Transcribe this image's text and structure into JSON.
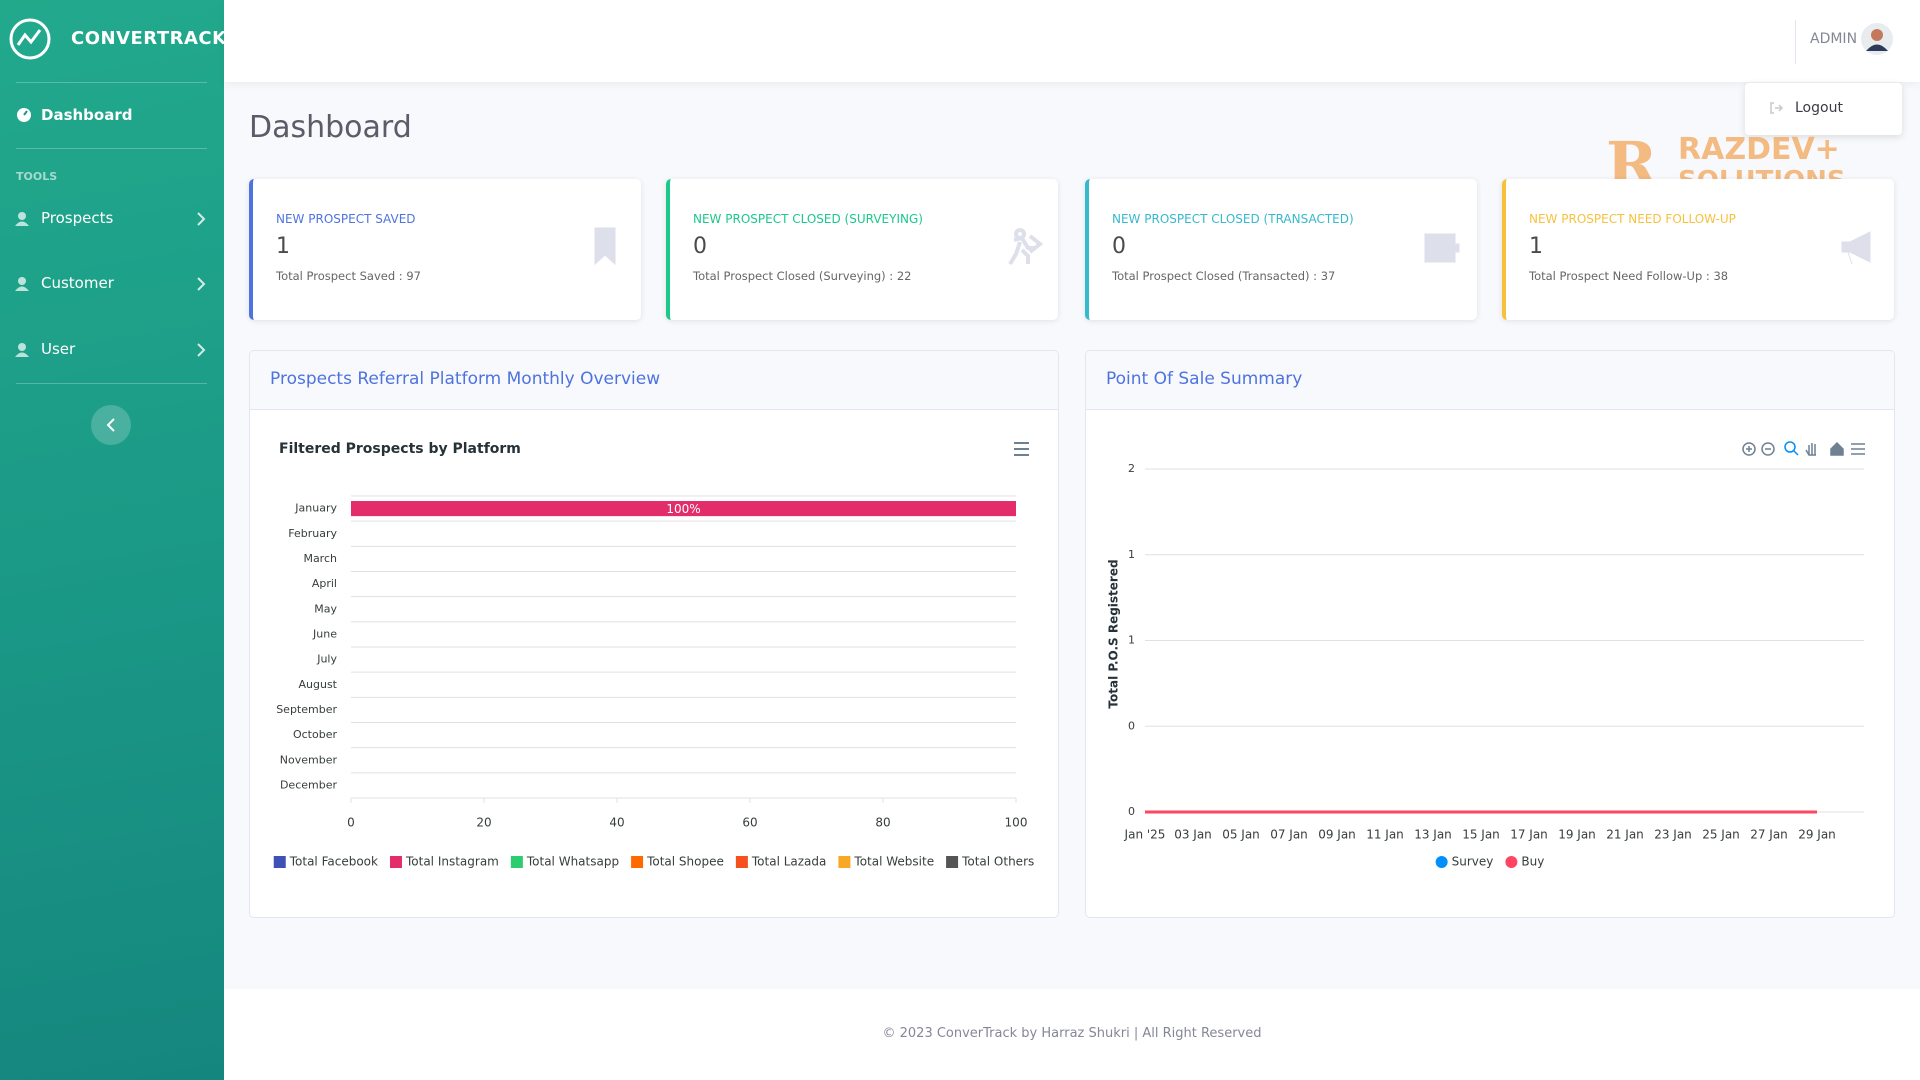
{
  "sidebar": {
    "brand": "CONVERTRACK",
    "active": "Dashboard",
    "section": "TOOLS",
    "tools": [
      "Prospects",
      "Customer",
      "User"
    ]
  },
  "header": {
    "user": "ADMIN",
    "menu": [
      "Logout"
    ]
  },
  "watermark": [
    "RAZDEV+",
    "SOLUTIONS"
  ],
  "page_title": "Dashboard",
  "cards": [
    {
      "title": "NEW PROSPECT SAVED",
      "value": "1",
      "total": "Total Prospect Saved : 97",
      "color": "#4e73df"
    },
    {
      "title": "NEW PROSPECT CLOSED (SURVEYING)",
      "value": "0",
      "total": "Total Prospect Closed (Surveying) : 22",
      "color": "#1cc88a"
    },
    {
      "title": "NEW PROSPECT CLOSED (TRANSACTED)",
      "value": "0",
      "total": "Total Prospect Closed (Transacted) : 37",
      "color": "#36b9cc"
    },
    {
      "title": "NEW PROSPECT NEED FOLLOW-UP",
      "value": "1",
      "total": "Total Prospect Need Follow-Up : 38",
      "color": "#f6c23e"
    }
  ],
  "panels": [
    {
      "title": "Prospects Referral Platform Monthly Overview",
      "chart_data": {
        "type": "bar",
        "orientation": "horizontal",
        "stacked": true,
        "title": "Filtered Prospects by Platform",
        "categories": [
          "January",
          "February",
          "March",
          "April",
          "May",
          "June",
          "July",
          "August",
          "September",
          "October",
          "November",
          "December"
        ],
        "series": [
          {
            "name": "Total Facebook",
            "color": "#3f51b5",
            "values": [
              0,
              0,
              0,
              0,
              0,
              0,
              0,
              0,
              0,
              0,
              0,
              0
            ]
          },
          {
            "name": "Total Instagram",
            "color": "#e32d6a",
            "values": [
              100,
              0,
              0,
              0,
              0,
              0,
              0,
              0,
              0,
              0,
              0,
              0
            ],
            "value_labels": [
              "100%",
              null,
              null,
              null,
              null,
              null,
              null,
              null,
              null,
              null,
              null,
              null
            ]
          },
          {
            "name": "Total Whatsapp",
            "color": "#2ecc71",
            "values": [
              0,
              0,
              0,
              0,
              0,
              0,
              0,
              0,
              0,
              0,
              0,
              0
            ]
          },
          {
            "name": "Total Shopee",
            "color": "#ff6a00",
            "values": [
              0,
              0,
              0,
              0,
              0,
              0,
              0,
              0,
              0,
              0,
              0,
              0
            ]
          },
          {
            "name": "Total Lazada",
            "color": "#f4511e",
            "values": [
              0,
              0,
              0,
              0,
              0,
              0,
              0,
              0,
              0,
              0,
              0,
              0
            ]
          },
          {
            "name": "Total Website",
            "color": "#f9a825",
            "values": [
              0,
              0,
              0,
              0,
              0,
              0,
              0,
              0,
              0,
              0,
              0,
              0
            ]
          },
          {
            "name": "Total Others",
            "color": "#555555",
            "values": [
              0,
              0,
              0,
              0,
              0,
              0,
              0,
              0,
              0,
              0,
              0,
              0
            ]
          }
        ],
        "xlim": [
          0,
          100
        ],
        "xticks": [
          0,
          20,
          40,
          60,
          80,
          100
        ]
      }
    },
    {
      "title": "Point Of Sale Summary",
      "chart_data": {
        "type": "line",
        "y_label": "Total P.O.S Registered",
        "categories": [
          "Jan '25",
          "03 Jan",
          "05 Jan",
          "07 Jan",
          "09 Jan",
          "11 Jan",
          "13 Jan",
          "15 Jan",
          "17 Jan",
          "19 Jan",
          "21 Jan",
          "23 Jan",
          "25 Jan",
          "27 Jan",
          "29 Jan"
        ],
        "series": [
          {
            "name": "Survey",
            "color": "#008ffb",
            "values": [
              0,
              0,
              0,
              0,
              0,
              0,
              0,
              0,
              0,
              0,
              0,
              0,
              0,
              0,
              0
            ]
          },
          {
            "name": "Buy",
            "color": "#ff4560",
            "values": [
              0,
              0,
              0,
              0,
              0,
              0,
              0,
              0,
              0,
              0,
              0,
              0,
              0,
              0,
              0
            ]
          }
        ],
        "ylim": [
          0,
          2
        ],
        "yticks": [
          0,
          {
            "value": 0.5,
            "label": "0"
          },
          1,
          {
            "value": 1.5,
            "label": "1"
          },
          2
        ],
        "grid": true
      }
    }
  ],
  "footer": "© 2023 ConverTrack by Harraz Shukri | All Right Reserved"
}
